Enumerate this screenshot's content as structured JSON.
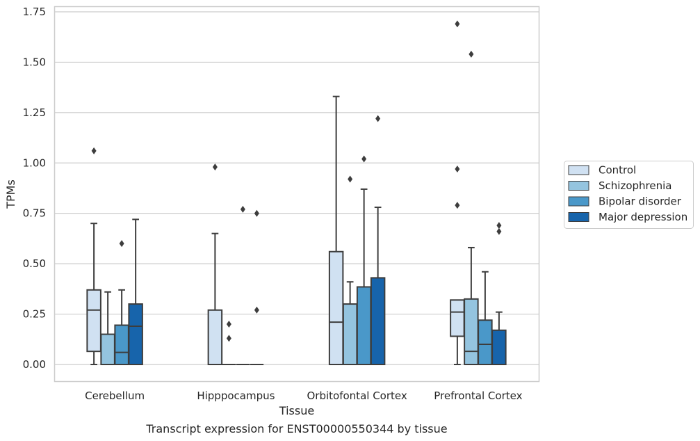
{
  "chart_data": {
    "type": "box",
    "xlabel": "Tissue",
    "ylabel": "TPMs",
    "caption": "Transcript expression for ENST00000550344 by tissue",
    "ylim": [
      -0.08,
      1.775
    ],
    "yticks": [
      0.0,
      0.25,
      0.5,
      0.75,
      1.0,
      1.25,
      1.5,
      1.75
    ],
    "ytick_labels": [
      "0.00",
      "0.25",
      "0.50",
      "0.75",
      "1.00",
      "1.25",
      "1.50",
      "1.75"
    ],
    "grid": "horizontal",
    "legend_position": "right",
    "categories": [
      "Cerebellum",
      "Hipppocampus",
      "Orbitofontal Cortex",
      "Prefrontal Cortex"
    ],
    "series": [
      {
        "name": "Control",
        "color": "#d0e1f2",
        "boxes": [
          {
            "whislo": 0.0,
            "q1": 0.065,
            "med": 0.27,
            "q3": 0.37,
            "whishi": 0.7,
            "fliers": [
              1.06
            ]
          },
          {
            "whislo": 0.0,
            "q1": 0.0,
            "med": 0.0,
            "q3": 0.27,
            "whishi": 0.65,
            "fliers": [
              0.98
            ]
          },
          {
            "whislo": 0.0,
            "q1": 0.0,
            "med": 0.21,
            "q3": 0.56,
            "whishi": 1.33,
            "fliers": []
          },
          {
            "whislo": 0.0,
            "q1": 0.14,
            "med": 0.26,
            "q3": 0.32,
            "whishi": 0.32,
            "fliers": [
              0.79,
              0.97,
              1.69
            ]
          }
        ]
      },
      {
        "name": "Schizophrenia",
        "color": "#94c4df",
        "boxes": [
          {
            "whislo": 0.0,
            "q1": 0.0,
            "med": 0.0,
            "q3": 0.15,
            "whishi": 0.36,
            "fliers": []
          },
          {
            "whislo": 0.0,
            "q1": 0.0,
            "med": 0.0,
            "q3": 0.0,
            "whishi": 0.0,
            "fliers": [
              0.13,
              0.2
            ]
          },
          {
            "whislo": 0.0,
            "q1": 0.0,
            "med": 0.0,
            "q3": 0.3,
            "whishi": 0.41,
            "fliers": [
              0.92
            ]
          },
          {
            "whislo": 0.0,
            "q1": 0.0,
            "med": 0.065,
            "q3": 0.325,
            "whishi": 0.58,
            "fliers": [
              1.54
            ]
          }
        ]
      },
      {
        "name": "Bipolar disorder",
        "color": "#4a98c9",
        "boxes": [
          {
            "whislo": 0.0,
            "q1": 0.0,
            "med": 0.06,
            "q3": 0.195,
            "whishi": 0.37,
            "fliers": [
              0.6
            ]
          },
          {
            "whislo": 0.0,
            "q1": 0.0,
            "med": 0.0,
            "q3": 0.0,
            "whishi": 0.0,
            "fliers": [
              0.77
            ]
          },
          {
            "whislo": 0.0,
            "q1": 0.0,
            "med": 0.0,
            "q3": 0.385,
            "whishi": 0.87,
            "fliers": [
              1.02
            ]
          },
          {
            "whislo": 0.0,
            "q1": 0.0,
            "med": 0.1,
            "q3": 0.22,
            "whishi": 0.46,
            "fliers": []
          }
        ]
      },
      {
        "name": "Major depression",
        "color": "#1764ab",
        "boxes": [
          {
            "whislo": 0.0,
            "q1": 0.0,
            "med": 0.19,
            "q3": 0.3,
            "whishi": 0.72,
            "fliers": []
          },
          {
            "whislo": 0.0,
            "q1": 0.0,
            "med": 0.0,
            "q3": 0.0,
            "whishi": 0.0,
            "fliers": [
              0.27,
              0.75
            ]
          },
          {
            "whislo": 0.0,
            "q1": 0.0,
            "med": 0.0,
            "q3": 0.43,
            "whishi": 0.78,
            "fliers": [
              1.22
            ]
          },
          {
            "whislo": 0.0,
            "q1": 0.0,
            "med": 0.0,
            "q3": 0.17,
            "whishi": 0.26,
            "fliers": [
              0.66,
              0.69
            ]
          }
        ]
      }
    ]
  }
}
